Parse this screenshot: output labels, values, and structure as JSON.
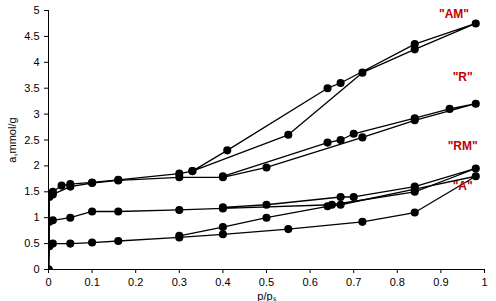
{
  "chart_data": {
    "type": "line",
    "x_label": "p/pₛ",
    "y_label": "a,mmol/g",
    "xlim": [
      0,
      1
    ],
    "ylim": [
      0,
      5
    ],
    "xticks": [
      0,
      0.1,
      0.2,
      0.3,
      0.4,
      0.5,
      0.6,
      0.7,
      0.8,
      0.9,
      1
    ],
    "yticks": [
      0,
      0.5,
      1,
      1.5,
      2,
      2.5,
      3,
      3.5,
      4,
      4.5,
      5
    ],
    "grid": false,
    "marker": "circle",
    "line_style": "solid",
    "series": [
      {
        "name": "\"AM\"",
        "color": "#000000",
        "x": [
          0,
          0.002,
          0.01,
          0.03,
          0.05,
          0.1,
          0.16,
          0.3,
          0.33,
          0.55,
          0.72,
          0.84,
          0.98,
          0.84,
          0.67,
          0.64,
          0.41,
          0.33
        ],
        "values": [
          0,
          1.45,
          1.5,
          1.62,
          1.65,
          1.68,
          1.73,
          1.85,
          1.9,
          2.6,
          3.8,
          4.25,
          4.75,
          4.35,
          3.6,
          3.5,
          2.3,
          1.9
        ]
      },
      {
        "name": "\"R\"",
        "color": "#000000",
        "x": [
          0,
          0.002,
          0.01,
          0.05,
          0.1,
          0.16,
          0.3,
          0.4,
          0.5,
          0.72,
          0.84,
          0.98,
          0.92,
          0.84,
          0.7,
          0.67,
          0.64,
          0.4
        ],
        "values": [
          0,
          1.4,
          1.45,
          1.6,
          1.67,
          1.72,
          1.78,
          1.78,
          1.97,
          2.55,
          2.88,
          3.2,
          3.1,
          2.92,
          2.62,
          2.5,
          2.45,
          1.8
        ]
      },
      {
        "name": "\"RM\"",
        "color": "#000000",
        "x": [
          0,
          0.002,
          0.01,
          0.05,
          0.1,
          0.16,
          0.3,
          0.4,
          0.65,
          0.84,
          0.98,
          0.84,
          0.7,
          0.67,
          0.5,
          0.4
        ],
        "values": [
          0,
          0.92,
          0.95,
          1.0,
          1.12,
          1.12,
          1.15,
          1.18,
          1.25,
          1.5,
          1.95,
          1.6,
          1.4,
          1.4,
          1.25,
          1.2
        ]
      },
      {
        "name": "\"A\"",
        "color": "#000000",
        "x": [
          0,
          0.002,
          0.01,
          0.05,
          0.1,
          0.16,
          0.3,
          0.4,
          0.55,
          0.72,
          0.84,
          0.98,
          0.84,
          0.67,
          0.64,
          0.5,
          0.4,
          0.3
        ],
        "values": [
          0,
          0.45,
          0.5,
          0.5,
          0.52,
          0.55,
          0.62,
          0.68,
          0.78,
          0.92,
          1.1,
          1.8,
          1.55,
          1.25,
          1.22,
          1.0,
          0.82,
          0.65
        ]
      }
    ],
    "annotations": [
      {
        "text": "\"AM\"",
        "x": 0.93,
        "y": 4.93,
        "color": "#c00000"
      },
      {
        "text": "\"R\"",
        "x": 0.95,
        "y": 3.72,
        "color": "#c00000"
      },
      {
        "text": "\"RM\"",
        "x": 0.95,
        "y": 2.38,
        "color": "#c00000"
      },
      {
        "text": "\"A\"",
        "x": 0.95,
        "y": 1.6,
        "color": "#c00000"
      }
    ]
  }
}
